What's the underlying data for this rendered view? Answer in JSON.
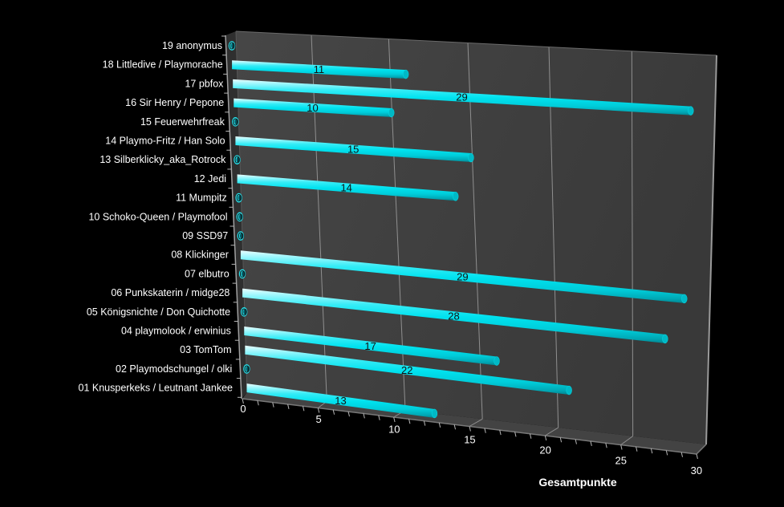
{
  "chart_data": {
    "type": "bar",
    "orientation": "horizontal",
    "style": "3d-cylinder",
    "title": "",
    "xlabel": "Gesamtpunkte",
    "ylabel": "",
    "xlim": [
      0,
      30
    ],
    "x_ticks": [
      0,
      5,
      10,
      15,
      20,
      25,
      30
    ],
    "grid": "major-vertical",
    "legend": "none",
    "categories": [
      "19 anonymus",
      "18 Littledive / Playmorache",
      "17 pbfox",
      "16 Sir Henry / Pepone",
      "15 Feuerwehrfreak",
      "14 Playmo-Fritz / Han Solo",
      "13 Silberklicky_aka_Rotrock",
      "12 Jedi",
      "11 Mumpitz",
      "10 Schoko-Queen / Playmofool",
      "09 SSD97",
      "08 Klickinger",
      "07 elbutro",
      "06 Punkskaterin / midge28",
      "05 Königsnichte / Don Quichotte",
      "04 playmolook / erwinius",
      "03 TomTom",
      "02 Playmodschungel / olki",
      "01 Knusperkeks / Leutnant Jankee"
    ],
    "values": [
      0,
      11,
      29,
      10,
      0,
      15,
      0,
      14,
      0,
      0,
      0,
      29,
      0,
      28,
      0,
      17,
      22,
      0,
      13
    ],
    "colors": {
      "background": "#000000",
      "bar": "#00e2ef",
      "bar_highlight": "#eafeff",
      "bar_shadow": "#00848f",
      "bar_cap": "#00b9c6",
      "wall": "#3f3f3f",
      "wall_light": "#454545",
      "floor": "#434343",
      "left_wall": "#2f2f2f",
      "gridline": "#8f8f8f",
      "edge_light": "#a0a0a0",
      "tick": "#b5b5b5",
      "axis_text": "#ffffff",
      "category_text": "#ffffff",
      "value_text": "#121212"
    }
  }
}
